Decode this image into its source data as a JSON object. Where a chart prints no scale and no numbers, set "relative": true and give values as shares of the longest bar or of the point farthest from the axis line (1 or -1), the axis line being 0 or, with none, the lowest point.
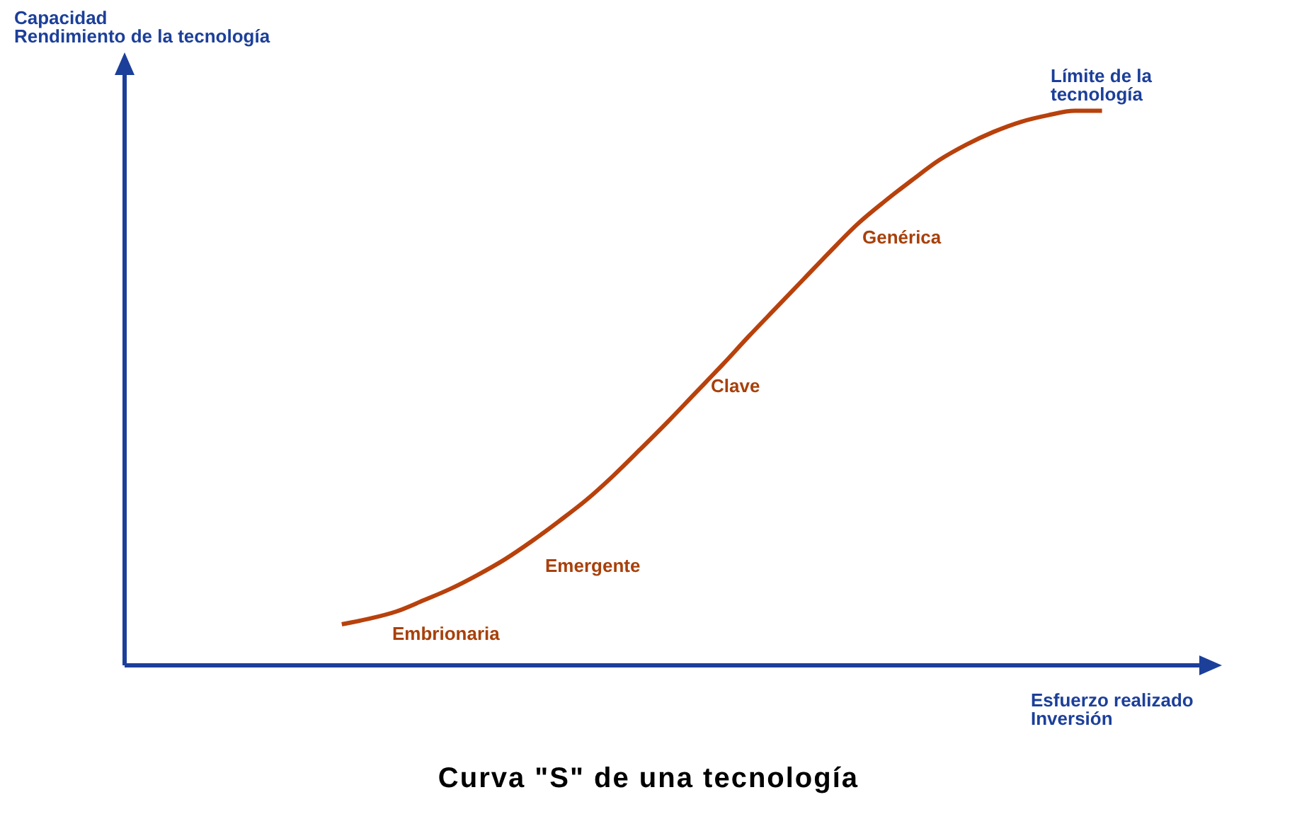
{
  "chart_data": {
    "type": "line",
    "title": "Curva \"S\" de una tecnología",
    "xlabel": "Esfuerzo realizado\nInversión",
    "ylabel": "Capacidad\nRendimiento de la tecnología",
    "annotations": [
      "Embrionaria",
      "Emergente",
      "Clave",
      "Genérica",
      "Límite de la\ntecnología"
    ],
    "relative": true,
    "legend": false,
    "marker": "none",
    "categories": [
      null,
      null,
      null,
      null,
      null,
      null,
      null,
      null,
      null,
      null,
      null,
      null,
      null,
      null,
      null,
      null,
      null,
      null,
      null,
      null,
      null,
      null,
      null,
      null,
      null,
      null,
      null,
      null,
      null,
      null,
      null,
      null,
      null,
      null,
      null,
      null,
      null,
      null,
      null,
      null,
      null
    ],
    "series": [
      {
        "color": "#b8410c",
        "values": [
          null,
          null,
          null,
          null,
          null,
          null,
          null,
          null,
          0.074,
          0.084,
          0.097,
          0.117,
          0.138,
          0.163,
          0.191,
          0.224,
          0.26,
          0.298,
          0.342,
          0.39,
          0.439,
          0.49,
          0.541,
          0.594,
          0.645,
          0.696,
          0.747,
          0.796,
          0.837,
          0.875,
          0.911,
          0.939,
          0.962,
          0.98,
          0.992,
          1.0,
          1.0,
          null,
          null,
          null,
          null
        ]
      }
    ]
  }
}
